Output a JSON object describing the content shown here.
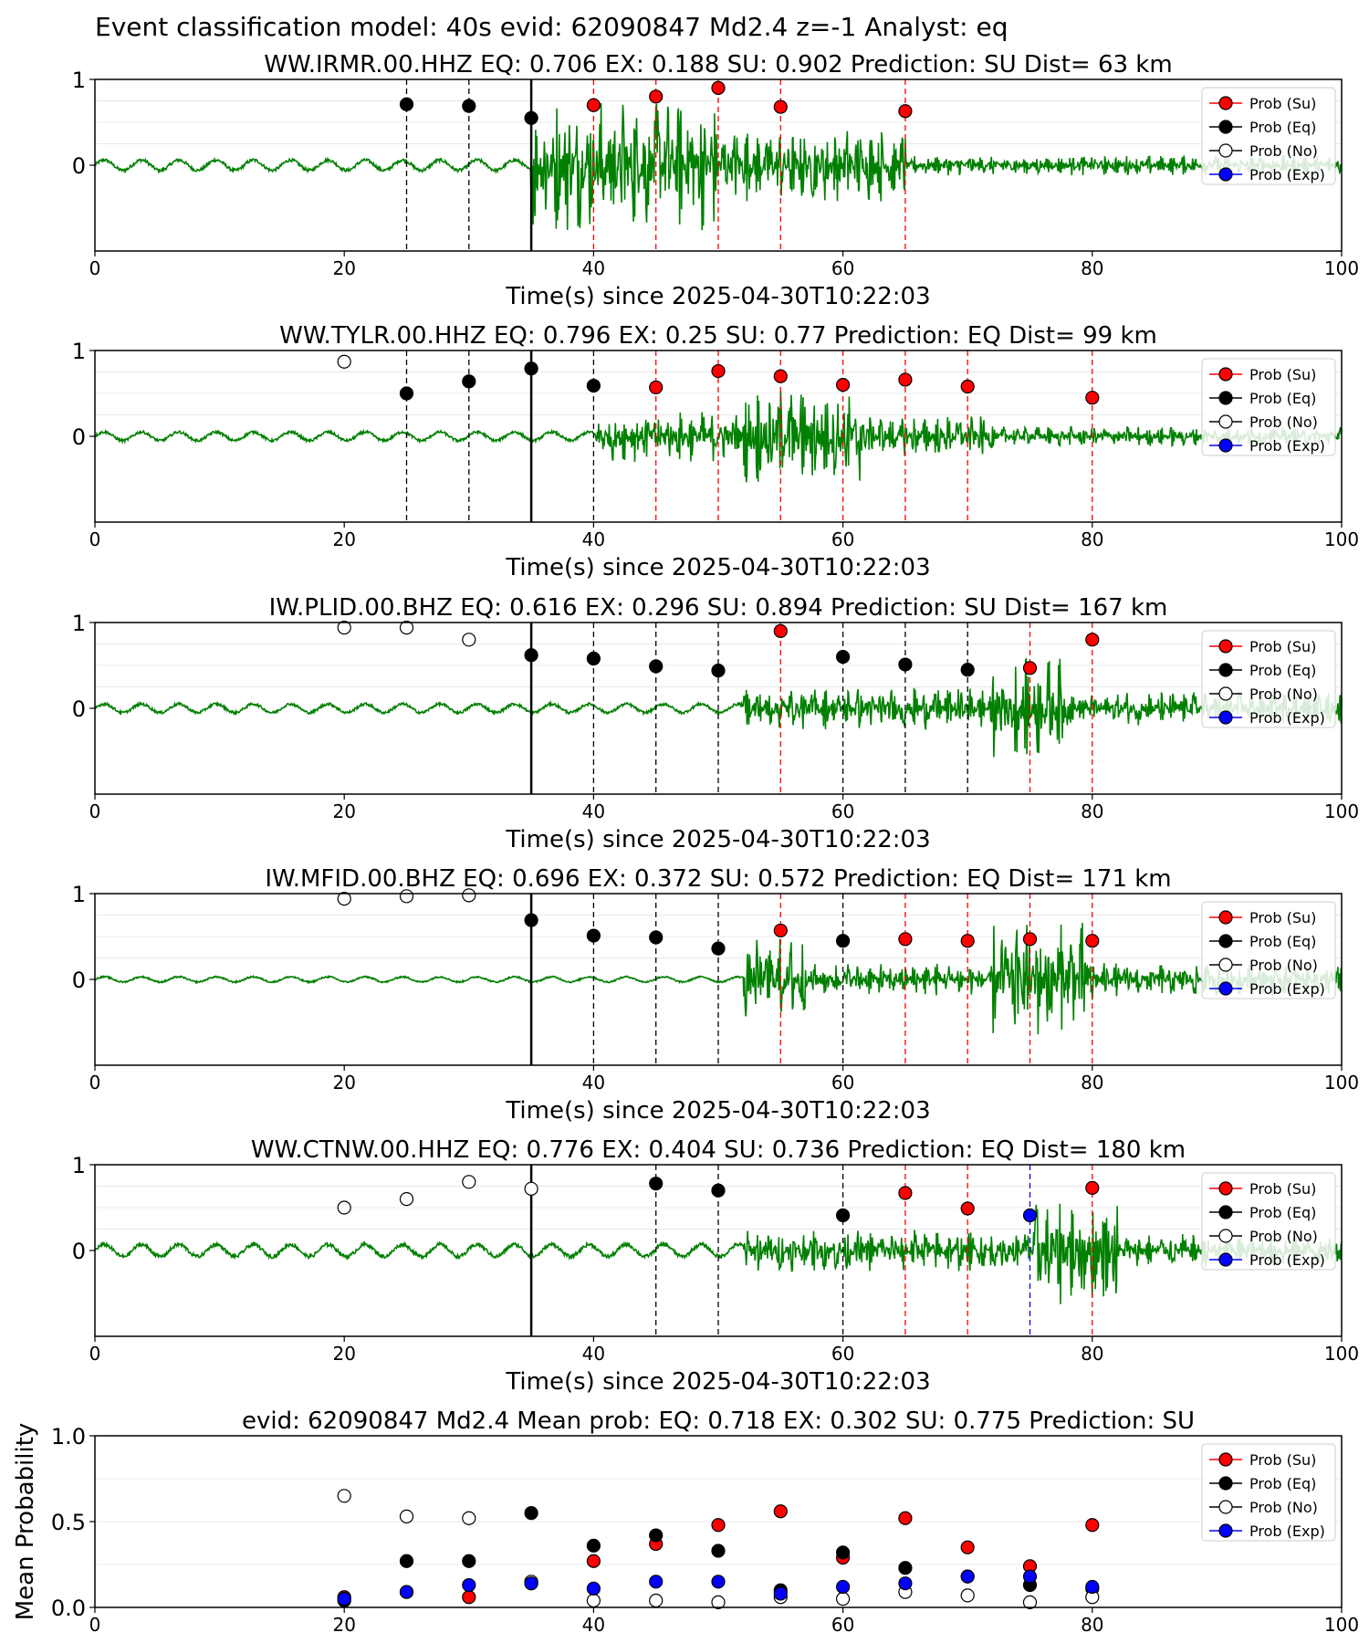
{
  "figure": {
    "title": "Event classification model: 40s evid: 62090847 Md2.4 z=-1 Analyst: eq"
  },
  "legend": {
    "entries": [
      {
        "label": "Prob (Su)",
        "color": "#ff0000",
        "fill": "#ff0000"
      },
      {
        "label": "Prob (Eq)",
        "color": "#000000",
        "fill": "#000000"
      },
      {
        "label": "Prob (No)",
        "color": "#000000",
        "fill": "#ffffff"
      },
      {
        "label": "Prob (Exp)",
        "color": "#0000ff",
        "fill": "#0000ff"
      }
    ],
    "placement": "top-right"
  },
  "colors": {
    "waveform": "#008000",
    "su": "#ff0000",
    "eq": "#000000",
    "no": "#ffffff",
    "exp": "#0000ff",
    "pick_line": "#000000"
  },
  "chart_data": [
    {
      "type": "line",
      "title": "WW.IRMR.00.HHZ   EQ: 0.706  EX: 0.188  SU: 0.902   Prediction: SU    Dist= 63 km",
      "xlabel": "Time(s) since 2025-04-30T10:22:03",
      "ylabel": "",
      "xlim": [
        0,
        100
      ],
      "ylim": [
        -1,
        1
      ],
      "xticks": [
        0,
        20,
        40,
        60,
        80,
        100
      ],
      "yticks": [
        0,
        1
      ],
      "pick_time": 35,
      "onset": 35,
      "amp_segments": [
        [
          0,
          35,
          0.06
        ],
        [
          35,
          50,
          0.8
        ],
        [
          50,
          65,
          0.45
        ],
        [
          65,
          100,
          0.12
        ]
      ],
      "probs": [
        {
          "t": 25,
          "cls": "eq",
          "v": 0.71
        },
        {
          "t": 30,
          "cls": "eq",
          "v": 0.69
        },
        {
          "t": 35,
          "cls": "eq",
          "v": 0.55
        },
        {
          "t": 40,
          "cls": "su",
          "v": 0.7
        },
        {
          "t": 45,
          "cls": "su",
          "v": 0.8
        },
        {
          "t": 50,
          "cls": "su",
          "v": 0.9
        },
        {
          "t": 55,
          "cls": "su",
          "v": 0.68
        },
        {
          "t": 65,
          "cls": "su",
          "v": 0.63
        }
      ]
    },
    {
      "type": "line",
      "title": "WW.TYLR.00.HHZ   EQ: 0.796  EX: 0.25  SU: 0.77   Prediction: EQ    Dist= 99 km",
      "xlabel": "Time(s) since 2025-04-30T10:22:03",
      "ylabel": "",
      "xlim": [
        0,
        100
      ],
      "ylim": [
        -1,
        1
      ],
      "xticks": [
        0,
        20,
        40,
        60,
        80,
        100
      ],
      "yticks": [
        0,
        1
      ],
      "pick_time": 35,
      "onset": 40,
      "amp_segments": [
        [
          0,
          40,
          0.05
        ],
        [
          40,
          52,
          0.3
        ],
        [
          52,
          62,
          0.6
        ],
        [
          62,
          72,
          0.25
        ],
        [
          72,
          100,
          0.12
        ]
      ],
      "probs": [
        {
          "t": 20,
          "cls": "no",
          "v": 0.87
        },
        {
          "t": 25,
          "cls": "eq",
          "v": 0.5
        },
        {
          "t": 30,
          "cls": "eq",
          "v": 0.64
        },
        {
          "t": 35,
          "cls": "eq",
          "v": 0.79
        },
        {
          "t": 40,
          "cls": "eq",
          "v": 0.59
        },
        {
          "t": 45,
          "cls": "su",
          "v": 0.57
        },
        {
          "t": 50,
          "cls": "su",
          "v": 0.76
        },
        {
          "t": 55,
          "cls": "su",
          "v": 0.7
        },
        {
          "t": 60,
          "cls": "su",
          "v": 0.6
        },
        {
          "t": 65,
          "cls": "su",
          "v": 0.66
        },
        {
          "t": 70,
          "cls": "su",
          "v": 0.58
        },
        {
          "t": 80,
          "cls": "su",
          "v": 0.45
        }
      ]
    },
    {
      "type": "line",
      "title": "IW.PLID.00.BHZ   EQ: 0.616  EX: 0.296  SU: 0.894   Prediction: SU    Dist= 167 km",
      "xlabel": "Time(s) since 2025-04-30T10:22:03",
      "ylabel": "",
      "xlim": [
        0,
        100
      ],
      "ylim": [
        -1,
        1
      ],
      "xticks": [
        0,
        20,
        40,
        60,
        80,
        100
      ],
      "yticks": [
        0,
        1
      ],
      "pick_time": 35,
      "onset": 52,
      "amp_segments": [
        [
          0,
          52,
          0.05
        ],
        [
          52,
          72,
          0.25
        ],
        [
          72,
          78,
          0.6
        ],
        [
          78,
          100,
          0.2
        ]
      ],
      "probs": [
        {
          "t": 20,
          "cls": "no",
          "v": 0.94
        },
        {
          "t": 25,
          "cls": "no",
          "v": 0.94
        },
        {
          "t": 30,
          "cls": "no",
          "v": 0.8
        },
        {
          "t": 35,
          "cls": "eq",
          "v": 0.62
        },
        {
          "t": 40,
          "cls": "eq",
          "v": 0.58
        },
        {
          "t": 45,
          "cls": "eq",
          "v": 0.49
        },
        {
          "t": 50,
          "cls": "eq",
          "v": 0.44
        },
        {
          "t": 55,
          "cls": "su",
          "v": 0.9
        },
        {
          "t": 60,
          "cls": "eq",
          "v": 0.6
        },
        {
          "t": 65,
          "cls": "eq",
          "v": 0.51
        },
        {
          "t": 70,
          "cls": "eq",
          "v": 0.45
        },
        {
          "t": 75,
          "cls": "su",
          "v": 0.47
        },
        {
          "t": 80,
          "cls": "su",
          "v": 0.8
        }
      ]
    },
    {
      "type": "line",
      "title": "IW.MFID.00.BHZ   EQ: 0.696  EX: 0.372  SU: 0.572   Prediction: EQ    Dist= 171 km",
      "xlabel": "Time(s) since 2025-04-30T10:22:03",
      "ylabel": "",
      "xlim": [
        0,
        100
      ],
      "ylim": [
        -1,
        1
      ],
      "xticks": [
        0,
        20,
        40,
        60,
        80,
        100
      ],
      "yticks": [
        0,
        1
      ],
      "pick_time": 35,
      "onset": 52,
      "amp_segments": [
        [
          0,
          52,
          0.03
        ],
        [
          52,
          57,
          0.5
        ],
        [
          57,
          72,
          0.2
        ],
        [
          72,
          80,
          0.7
        ],
        [
          80,
          100,
          0.2
        ]
      ],
      "probs": [
        {
          "t": 20,
          "cls": "no",
          "v": 0.94
        },
        {
          "t": 25,
          "cls": "no",
          "v": 0.97
        },
        {
          "t": 30,
          "cls": "no",
          "v": 0.98
        },
        {
          "t": 35,
          "cls": "eq",
          "v": 0.69
        },
        {
          "t": 40,
          "cls": "eq",
          "v": 0.51
        },
        {
          "t": 45,
          "cls": "eq",
          "v": 0.49
        },
        {
          "t": 50,
          "cls": "eq",
          "v": 0.36
        },
        {
          "t": 55,
          "cls": "su",
          "v": 0.57
        },
        {
          "t": 60,
          "cls": "eq",
          "v": 0.45
        },
        {
          "t": 65,
          "cls": "su",
          "v": 0.47
        },
        {
          "t": 70,
          "cls": "su",
          "v": 0.45
        },
        {
          "t": 75,
          "cls": "su",
          "v": 0.47
        },
        {
          "t": 80,
          "cls": "su",
          "v": 0.45
        }
      ]
    },
    {
      "type": "line",
      "title": "WW.CTNW.00.HHZ   EQ: 0.776  EX: 0.404  SU: 0.736   Prediction: EQ    Dist= 180 km",
      "xlabel": "Time(s) since 2025-04-30T10:22:03",
      "ylabel": "",
      "xlim": [
        0,
        100
      ],
      "ylim": [
        -1,
        1
      ],
      "xticks": [
        0,
        20,
        40,
        60,
        80,
        100
      ],
      "yticks": [
        0,
        1
      ],
      "pick_time": 35,
      "onset": 52,
      "amp_segments": [
        [
          0,
          52,
          0.07
        ],
        [
          52,
          75,
          0.25
        ],
        [
          75,
          82,
          0.65
        ],
        [
          82,
          100,
          0.2
        ]
      ],
      "probs": [
        {
          "t": 20,
          "cls": "no",
          "v": 0.5
        },
        {
          "t": 25,
          "cls": "no",
          "v": 0.6
        },
        {
          "t": 30,
          "cls": "no",
          "v": 0.8
        },
        {
          "t": 35,
          "cls": "no",
          "v": 0.72
        },
        {
          "t": 45,
          "cls": "eq",
          "v": 0.78
        },
        {
          "t": 50,
          "cls": "eq",
          "v": 0.7
        },
        {
          "t": 60,
          "cls": "eq",
          "v": 0.41
        },
        {
          "t": 65,
          "cls": "su",
          "v": 0.67
        },
        {
          "t": 70,
          "cls": "su",
          "v": 0.49
        },
        {
          "t": 75,
          "cls": "exp",
          "v": 0.41
        },
        {
          "t": 80,
          "cls": "su",
          "v": 0.73
        }
      ]
    },
    {
      "type": "scatter",
      "title": "evid: 62090847  Md2.4   Mean prob:   EQ: 0.718  EX: 0.302  SU: 0.775   Prediction: SU",
      "xlabel": "",
      "ylabel": "Mean Probability",
      "xlim": [
        0,
        100
      ],
      "ylim": [
        0,
        1
      ],
      "xticks": [
        0,
        20,
        40,
        60,
        80,
        100
      ],
      "yticks": [
        0.0,
        0.5,
        1.0
      ],
      "x": [
        20,
        25,
        30,
        35,
        40,
        45,
        50,
        55,
        60,
        65,
        70,
        75,
        80
      ],
      "series": [
        {
          "name": "Prob (Su)",
          "cls": "su",
          "values": [
            0.06,
            0.09,
            0.06,
            0.14,
            0.27,
            0.37,
            0.48,
            0.56,
            0.29,
            0.52,
            0.35,
            0.24,
            0.48
          ]
        },
        {
          "name": "Prob (Eq)",
          "cls": "eq",
          "values": [
            0.04,
            0.27,
            0.27,
            0.55,
            0.36,
            0.42,
            0.33,
            0.1,
            0.32,
            0.23,
            0.18,
            0.13,
            0.11
          ]
        },
        {
          "name": "Prob (No)",
          "cls": "no",
          "values": [
            0.65,
            0.53,
            0.52,
            0.15,
            0.04,
            0.04,
            0.03,
            0.06,
            0.05,
            0.09,
            0.07,
            0.03,
            0.06
          ]
        },
        {
          "name": "Prob (Exp)",
          "cls": "exp",
          "values": [
            0.05,
            0.09,
            0.13,
            0.14,
            0.11,
            0.15,
            0.15,
            0.08,
            0.12,
            0.14,
            0.18,
            0.18,
            0.12
          ]
        }
      ]
    }
  ]
}
